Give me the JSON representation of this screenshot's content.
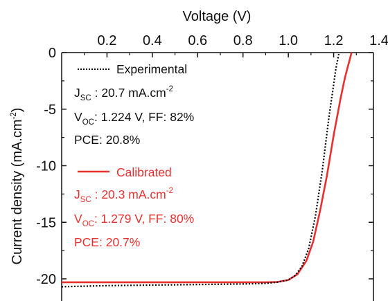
{
  "chart_data": {
    "type": "line",
    "xlabel": "Voltage (V)",
    "ylabel": "Current density (mA.cm^-2)",
    "ylabel_parts": {
      "base": "Current density (mA.cm",
      "sup": "-2",
      "close": ")"
    },
    "xlim": [
      0.0,
      1.4
    ],
    "ylim": [
      -22.0,
      0.0
    ],
    "x_ticks": [
      0.2,
      0.4,
      0.6,
      0.8,
      1.0,
      1.2,
      1.4
    ],
    "x_tick_labels": [
      "0.2",
      "0.4",
      "0.6",
      "0.8",
      "1.0",
      "1.2",
      "1.4"
    ],
    "y_ticks": [
      0,
      -5,
      -10,
      -15,
      -20
    ],
    "y_tick_labels": [
      "0",
      "-5",
      "-10",
      "-15",
      "-20"
    ],
    "grid": false,
    "legend_position": "top-left inside",
    "series": [
      {
        "name": "Experimental",
        "color": "#000000",
        "style": "dotted",
        "jsc_line": {
          "sym": "J",
          "sub": "SC",
          "text": " : 20.7 mA.cm",
          "sup": "-2"
        },
        "voc_line": {
          "sym": "V",
          "sub": "OC",
          "text": ": 1.224 V, FF: 82%"
        },
        "pce_line": "PCE: 20.8%",
        "x": [
          0.0,
          0.2,
          0.4,
          0.6,
          0.8,
          0.9,
          0.95,
          1.0,
          1.03,
          1.06,
          1.09,
          1.12,
          1.15,
          1.18,
          1.2,
          1.21,
          1.224
        ],
        "y": [
          -20.7,
          -20.6,
          -20.55,
          -20.5,
          -20.45,
          -20.4,
          -20.3,
          -20.1,
          -19.7,
          -18.9,
          -17.3,
          -14.4,
          -10.4,
          -5.6,
          -2.8,
          -1.4,
          0.0
        ]
      },
      {
        "name": "Calibrated",
        "color": "#e8302f",
        "style": "solid",
        "jsc_line": {
          "sym": "J",
          "sub": "SC",
          "text": " : 20.3 mA.cm",
          "sup": "-2"
        },
        "voc_line": {
          "sym": "V",
          "sub": "OC",
          "text": ": 1.279 V, FF: 80%"
        },
        "pce_line": "PCE: 20.7%",
        "x": [
          0.0,
          0.2,
          0.4,
          0.6,
          0.8,
          0.9,
          0.95,
          1.0,
          1.04,
          1.08,
          1.11,
          1.14,
          1.17,
          1.2,
          1.23,
          1.25,
          1.279
        ],
        "y": [
          -20.3,
          -20.3,
          -20.3,
          -20.3,
          -20.3,
          -20.3,
          -20.28,
          -20.1,
          -19.6,
          -18.4,
          -16.7,
          -14.0,
          -10.9,
          -7.3,
          -4.1,
          -2.2,
          0.0
        ]
      }
    ]
  }
}
